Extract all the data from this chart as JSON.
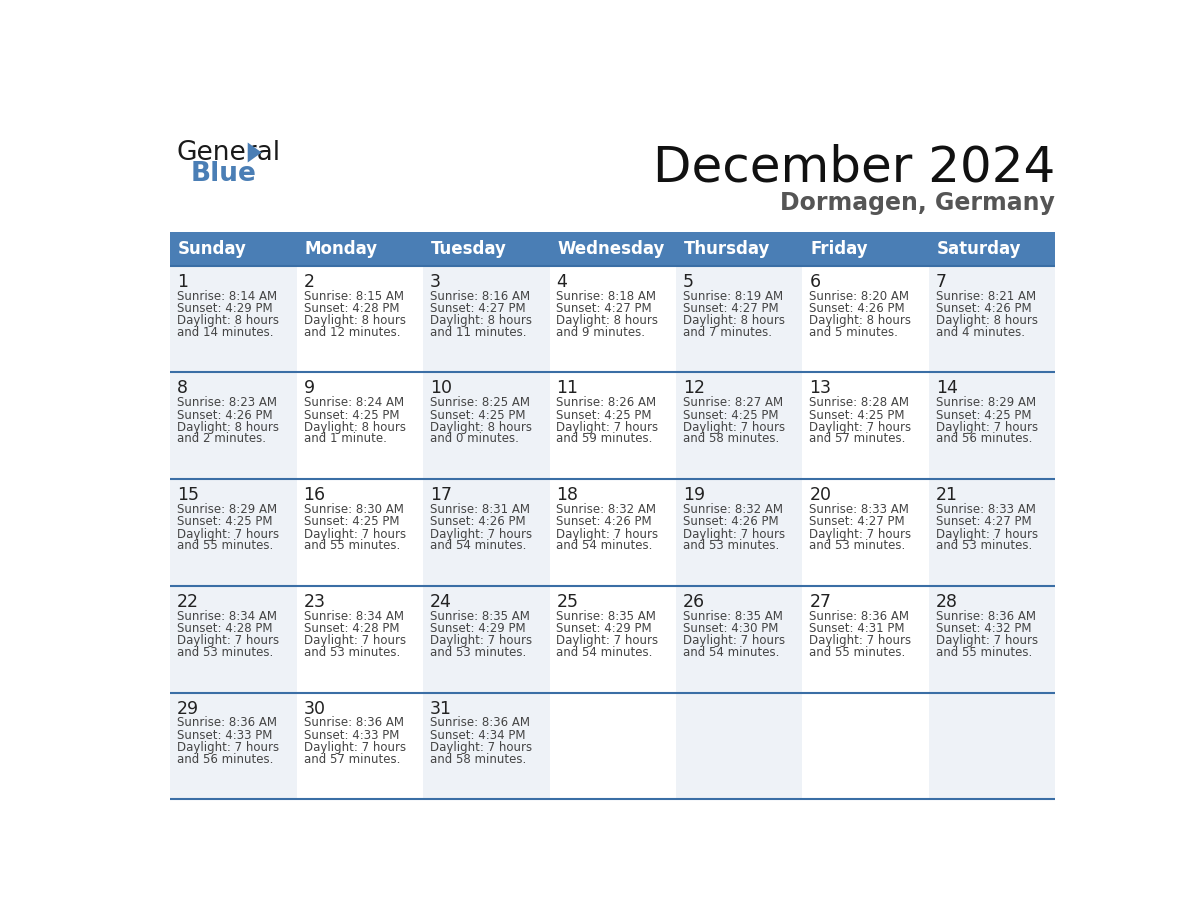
{
  "title": "December 2024",
  "subtitle": "Dormagen, Germany",
  "days_of_week": [
    "Sunday",
    "Monday",
    "Tuesday",
    "Wednesday",
    "Thursday",
    "Friday",
    "Saturday"
  ],
  "header_bg_color": "#4a7eb5",
  "header_text_color": "#ffffff",
  "cell_bg_colors": [
    "#eef2f7",
    "#ffffff",
    "#eef2f7",
    "#ffffff",
    "#eef2f7",
    "#ffffff",
    "#eef2f7"
  ],
  "row_separator_color": "#3a6ea5",
  "text_color": "#444444",
  "day_num_color": "#222222",
  "calendar_data": [
    [
      {
        "day": 1,
        "sunrise": "8:14 AM",
        "sunset": "4:29 PM",
        "daylight_h": "8 hours",
        "daylight_m": "and 14 minutes."
      },
      {
        "day": 2,
        "sunrise": "8:15 AM",
        "sunset": "4:28 PM",
        "daylight_h": "8 hours",
        "daylight_m": "and 12 minutes."
      },
      {
        "day": 3,
        "sunrise": "8:16 AM",
        "sunset": "4:27 PM",
        "daylight_h": "8 hours",
        "daylight_m": "and 11 minutes."
      },
      {
        "day": 4,
        "sunrise": "8:18 AM",
        "sunset": "4:27 PM",
        "daylight_h": "8 hours",
        "daylight_m": "and 9 minutes."
      },
      {
        "day": 5,
        "sunrise": "8:19 AM",
        "sunset": "4:27 PM",
        "daylight_h": "8 hours",
        "daylight_m": "and 7 minutes."
      },
      {
        "day": 6,
        "sunrise": "8:20 AM",
        "sunset": "4:26 PM",
        "daylight_h": "8 hours",
        "daylight_m": "and 5 minutes."
      },
      {
        "day": 7,
        "sunrise": "8:21 AM",
        "sunset": "4:26 PM",
        "daylight_h": "8 hours",
        "daylight_m": "and 4 minutes."
      }
    ],
    [
      {
        "day": 8,
        "sunrise": "8:23 AM",
        "sunset": "4:26 PM",
        "daylight_h": "8 hours",
        "daylight_m": "and 2 minutes."
      },
      {
        "day": 9,
        "sunrise": "8:24 AM",
        "sunset": "4:25 PM",
        "daylight_h": "8 hours",
        "daylight_m": "and 1 minute."
      },
      {
        "day": 10,
        "sunrise": "8:25 AM",
        "sunset": "4:25 PM",
        "daylight_h": "8 hours",
        "daylight_m": "and 0 minutes."
      },
      {
        "day": 11,
        "sunrise": "8:26 AM",
        "sunset": "4:25 PM",
        "daylight_h": "7 hours",
        "daylight_m": "and 59 minutes."
      },
      {
        "day": 12,
        "sunrise": "8:27 AM",
        "sunset": "4:25 PM",
        "daylight_h": "7 hours",
        "daylight_m": "and 58 minutes."
      },
      {
        "day": 13,
        "sunrise": "8:28 AM",
        "sunset": "4:25 PM",
        "daylight_h": "7 hours",
        "daylight_m": "and 57 minutes."
      },
      {
        "day": 14,
        "sunrise": "8:29 AM",
        "sunset": "4:25 PM",
        "daylight_h": "7 hours",
        "daylight_m": "and 56 minutes."
      }
    ],
    [
      {
        "day": 15,
        "sunrise": "8:29 AM",
        "sunset": "4:25 PM",
        "daylight_h": "7 hours",
        "daylight_m": "and 55 minutes."
      },
      {
        "day": 16,
        "sunrise": "8:30 AM",
        "sunset": "4:25 PM",
        "daylight_h": "7 hours",
        "daylight_m": "and 55 minutes."
      },
      {
        "day": 17,
        "sunrise": "8:31 AM",
        "sunset": "4:26 PM",
        "daylight_h": "7 hours",
        "daylight_m": "and 54 minutes."
      },
      {
        "day": 18,
        "sunrise": "8:32 AM",
        "sunset": "4:26 PM",
        "daylight_h": "7 hours",
        "daylight_m": "and 54 minutes."
      },
      {
        "day": 19,
        "sunrise": "8:32 AM",
        "sunset": "4:26 PM",
        "daylight_h": "7 hours",
        "daylight_m": "and 53 minutes."
      },
      {
        "day": 20,
        "sunrise": "8:33 AM",
        "sunset": "4:27 PM",
        "daylight_h": "7 hours",
        "daylight_m": "and 53 minutes."
      },
      {
        "day": 21,
        "sunrise": "8:33 AM",
        "sunset": "4:27 PM",
        "daylight_h": "7 hours",
        "daylight_m": "and 53 minutes."
      }
    ],
    [
      {
        "day": 22,
        "sunrise": "8:34 AM",
        "sunset": "4:28 PM",
        "daylight_h": "7 hours",
        "daylight_m": "and 53 minutes."
      },
      {
        "day": 23,
        "sunrise": "8:34 AM",
        "sunset": "4:28 PM",
        "daylight_h": "7 hours",
        "daylight_m": "and 53 minutes."
      },
      {
        "day": 24,
        "sunrise": "8:35 AM",
        "sunset": "4:29 PM",
        "daylight_h": "7 hours",
        "daylight_m": "and 53 minutes."
      },
      {
        "day": 25,
        "sunrise": "8:35 AM",
        "sunset": "4:29 PM",
        "daylight_h": "7 hours",
        "daylight_m": "and 54 minutes."
      },
      {
        "day": 26,
        "sunrise": "8:35 AM",
        "sunset": "4:30 PM",
        "daylight_h": "7 hours",
        "daylight_m": "and 54 minutes."
      },
      {
        "day": 27,
        "sunrise": "8:36 AM",
        "sunset": "4:31 PM",
        "daylight_h": "7 hours",
        "daylight_m": "and 55 minutes."
      },
      {
        "day": 28,
        "sunrise": "8:36 AM",
        "sunset": "4:32 PM",
        "daylight_h": "7 hours",
        "daylight_m": "and 55 minutes."
      }
    ],
    [
      {
        "day": 29,
        "sunrise": "8:36 AM",
        "sunset": "4:33 PM",
        "daylight_h": "7 hours",
        "daylight_m": "and 56 minutes."
      },
      {
        "day": 30,
        "sunrise": "8:36 AM",
        "sunset": "4:33 PM",
        "daylight_h": "7 hours",
        "daylight_m": "and 57 minutes."
      },
      {
        "day": 31,
        "sunrise": "8:36 AM",
        "sunset": "4:34 PM",
        "daylight_h": "7 hours",
        "daylight_m": "and 58 minutes."
      },
      null,
      null,
      null,
      null
    ]
  ],
  "logo_text_general": "General",
  "logo_text_blue": "Blue",
  "logo_color_general": "#1a1a1a",
  "logo_color_blue": "#4a7eb5",
  "fig_width": 11.88,
  "fig_height": 9.18,
  "dpi": 100
}
